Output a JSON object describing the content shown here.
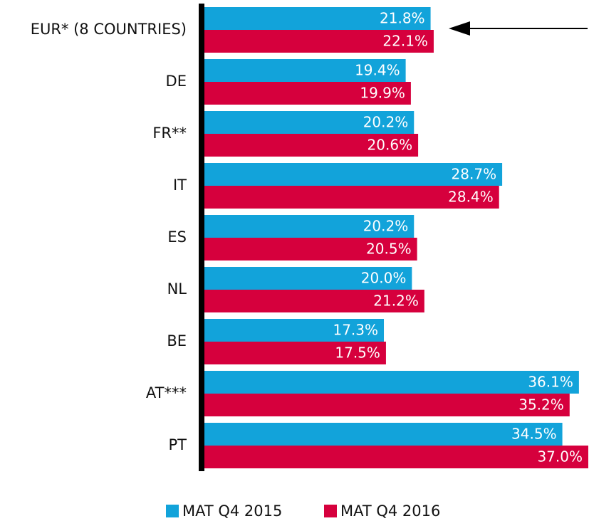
{
  "chart_data": {
    "type": "bar",
    "orientation": "horizontal",
    "categories": [
      "EUR* (8 COUNTRIES)",
      "DE",
      "FR**",
      "IT",
      "ES",
      "NL",
      "BE",
      "AT***",
      "PT"
    ],
    "series": [
      {
        "name": "MAT Q4 2015",
        "color": "#12a3da",
        "values": [
          21.8,
          19.4,
          20.2,
          28.7,
          20.2,
          20.0,
          17.3,
          36.1,
          34.5
        ],
        "value_labels": [
          "21.8%",
          "19.4%",
          "20.2%",
          "28.7%",
          "20.2%",
          "20.0%",
          "17.3%",
          "36.1%",
          "34.5%"
        ]
      },
      {
        "name": "MAT Q4 2016",
        "color": "#d6003d",
        "values": [
          22.1,
          19.9,
          20.6,
          28.4,
          20.5,
          21.2,
          17.5,
          35.2,
          37.0
        ],
        "value_labels": [
          "22.1%",
          "19.9%",
          "20.6%",
          "28.4%",
          "20.5%",
          "21.2%",
          "17.5%",
          "35.2%",
          "37.0%"
        ]
      }
    ],
    "legend": "bottom"
  }
}
